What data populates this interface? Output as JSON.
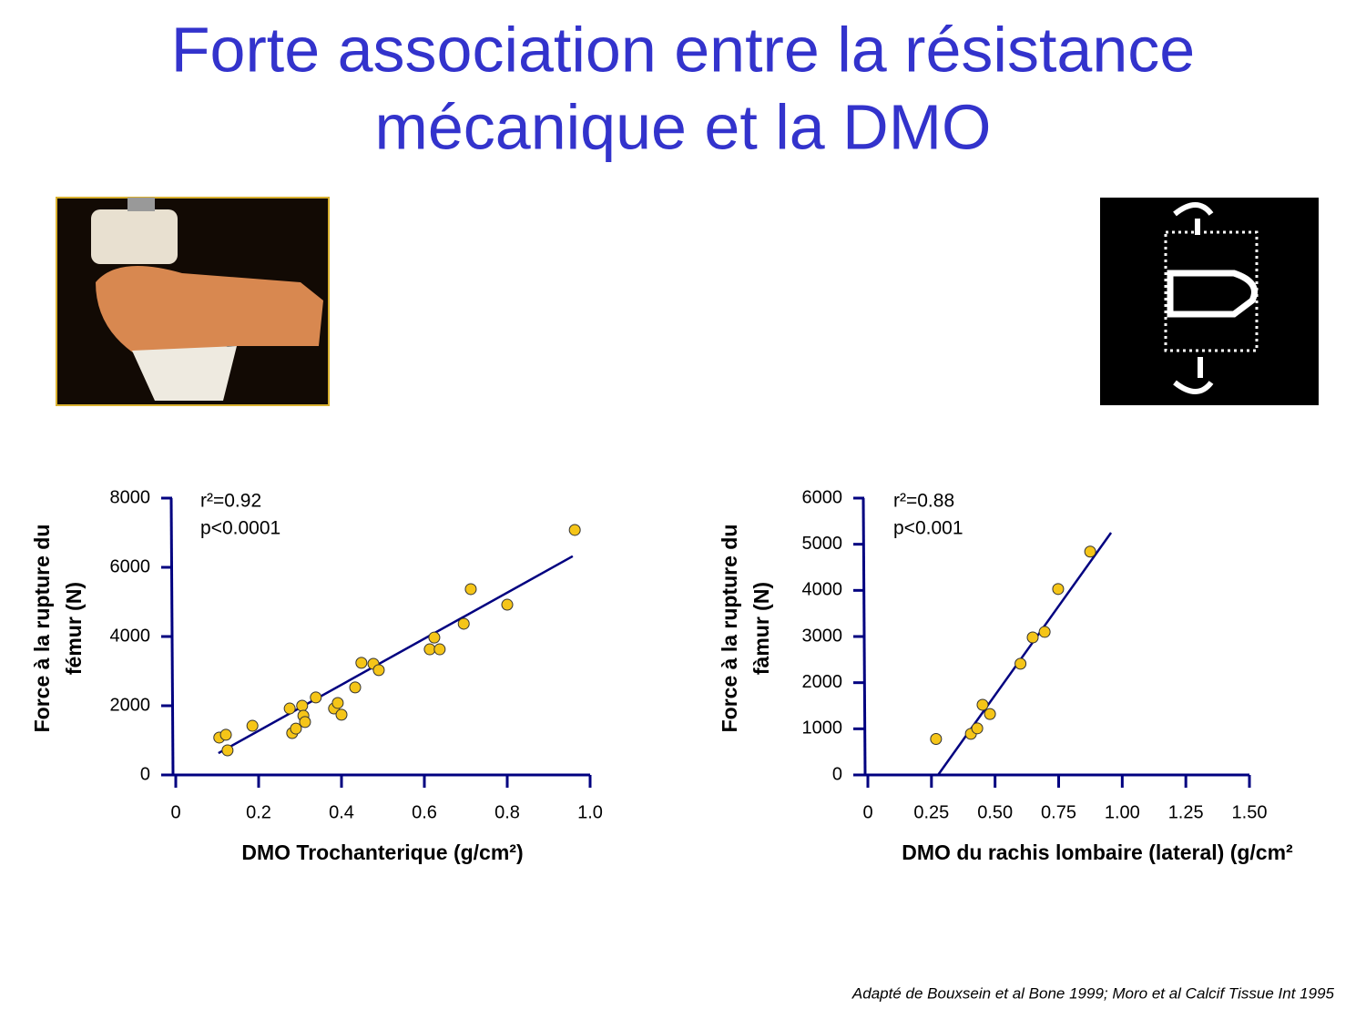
{
  "title": [
    "Forte association entre la résistance",
    "mécanique et la DMO"
  ],
  "citation": "Adapté de Bouxsein et al Bone 1999; Moro et al Calcif Tissue Int 1995",
  "chart_data": [
    {
      "type": "scatter",
      "xlabel": "DMO Trochanterique (g/cm²)",
      "ylabel": [
        "Force à la rupture du",
        "fémur (N)"
      ],
      "annotations": [
        "r²=0.92",
        "p<0.0001"
      ],
      "xlim": [
        0,
        1
      ],
      "ylim": [
        0,
        8000
      ],
      "xticks": [
        0,
        0.2,
        0.4,
        0.6,
        0.8,
        {
          "value": 1,
          "label": "1.0"
        }
      ],
      "yticks": [
        0,
        2000,
        4000,
        6000,
        8000
      ],
      "color": "#f5c518",
      "line_color": "#000080",
      "x": [
        0.105,
        0.121,
        0.125,
        0.185,
        0.275,
        0.281,
        0.29,
        0.305,
        0.308,
        0.312,
        0.338,
        0.382,
        0.391,
        0.4,
        0.433,
        0.448,
        0.477,
        0.49,
        0.613,
        0.624,
        0.637,
        0.695,
        0.712,
        0.8,
        0.963
      ],
      "values": [
        1080,
        1160,
        710,
        1420,
        1920,
        1210,
        1340,
        2000,
        1710,
        1530,
        2240,
        1920,
        2080,
        1740,
        2530,
        3240,
        3210,
        3030,
        3630,
        3970,
        3630,
        4370,
        5370,
        4920,
        7080
      ],
      "fit": {
        "x": [
          0.103,
          0.958
        ],
        "values": [
          630,
          6320
        ]
      }
    },
    {
      "type": "scatter",
      "xlabel": "DMO du rachis lombaire (lateral) (g/cm²",
      "ylabel": [
        "Force à la rupture du",
        "fàmur (N)"
      ],
      "annotations": [
        "r²=0.88",
        "p<0.001"
      ],
      "xlim": [
        0,
        1.5
      ],
      "ylim": [
        0,
        6000
      ],
      "xticks": [
        0,
        0.25,
        {
          "value": 0.5,
          "label": "0.50"
        },
        0.75,
        {
          "value": 1,
          "label": "1.00"
        },
        1.25,
        {
          "value": 1.5,
          "label": "1.50"
        }
      ],
      "yticks": [
        0,
        1000,
        2000,
        3000,
        4000,
        5000,
        6000
      ],
      "color": "#f5c518",
      "line_color": "#000080",
      "x": [
        0.268,
        0.405,
        0.43,
        0.451,
        0.48,
        0.6,
        0.648,
        0.695,
        0.748,
        0.874
      ],
      "values": [
        780,
        890,
        1010,
        1520,
        1320,
        2410,
        2980,
        3100,
        4030,
        4840
      ],
      "fit": {
        "x": [
          0.276,
          0.956
        ],
        "values": [
          0,
          5250
        ]
      }
    }
  ]
}
